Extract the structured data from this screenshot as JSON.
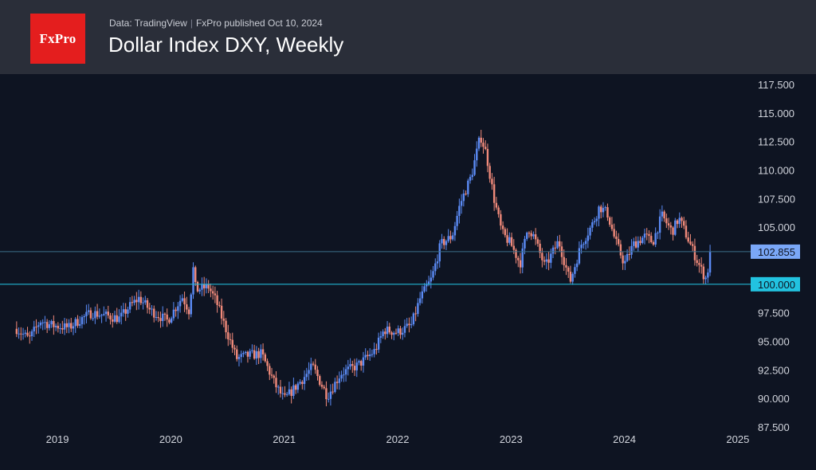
{
  "header": {
    "logo_text": "FxPro",
    "source_label": "Data: TradingView",
    "published_label": "FxPro published Oct 10, 2024",
    "title": "Dollar Index DXY, Weekly"
  },
  "colors": {
    "background": "#0e1422",
    "header_bg": "#2a2e39",
    "logo_bg": "#e41e1e",
    "up_candle": "#5b8bf5",
    "down_candle": "#f08a7a",
    "level_line": "#22b5d3",
    "price_line": "#3b6e8a",
    "price_badge": "#7aa7f7",
    "level_badge": "#22c3e0"
  },
  "chart_data": {
    "type": "candlestick",
    "title": "Dollar Index DXY, Weekly",
    "ylim": [
      87.5,
      117.5
    ],
    "xlim": [
      2018.62,
      2025.05
    ],
    "y_ticks": [
      "117.500",
      "115.000",
      "112.500",
      "110.000",
      "107.500",
      "105.000",
      "102.855",
      "100.000",
      "97.500",
      "95.000",
      "92.500",
      "90.000",
      "87.500"
    ],
    "y_tick_values": [
      117.5,
      115,
      112.5,
      110,
      107.5,
      105,
      102.855,
      100,
      97.5,
      95,
      92.5,
      90,
      87.5
    ],
    "x_ticks": [
      "2019",
      "2020",
      "2021",
      "2022",
      "2023",
      "2024",
      "2025"
    ],
    "x_tick_values": [
      2019,
      2020,
      2021,
      2022,
      2023,
      2024,
      2025
    ],
    "last_price": 102.855,
    "last_price_label": "102.855",
    "horizontal_level": 100.0,
    "horizontal_level_label": "100.000",
    "series_anchors": [
      [
        2018.64,
        96.1
      ],
      [
        2018.75,
        95.2
      ],
      [
        2018.85,
        96.8
      ],
      [
        2018.95,
        96.4
      ],
      [
        2019.1,
        96.2
      ],
      [
        2019.2,
        96.9
      ],
      [
        2019.3,
        97.5
      ],
      [
        2019.45,
        97.2
      ],
      [
        2019.55,
        97.0
      ],
      [
        2019.63,
        98.0
      ],
      [
        2019.72,
        98.8
      ],
      [
        2019.82,
        97.7
      ],
      [
        2019.97,
        96.8
      ],
      [
        2020.1,
        98.9
      ],
      [
        2020.17,
        97.5
      ],
      [
        2020.19,
        102.0
      ],
      [
        2020.22,
        99.5
      ],
      [
        2020.33,
        99.8
      ],
      [
        2020.4,
        98.5
      ],
      [
        2020.47,
        96.5
      ],
      [
        2020.58,
        93.5
      ],
      [
        2020.7,
        93.8
      ],
      [
        2020.8,
        93.9
      ],
      [
        2020.92,
        91.2
      ],
      [
        2021.0,
        89.9
      ],
      [
        2021.17,
        91.8
      ],
      [
        2021.25,
        92.8
      ],
      [
        2021.38,
        90.2
      ],
      [
        2021.5,
        92.2
      ],
      [
        2021.65,
        92.9
      ],
      [
        2021.8,
        94.2
      ],
      [
        2021.88,
        96.0
      ],
      [
        2022.0,
        95.8
      ],
      [
        2022.12,
        96.4
      ],
      [
        2022.2,
        98.8
      ],
      [
        2022.3,
        100.5
      ],
      [
        2022.38,
        103.5
      ],
      [
        2022.48,
        104.2
      ],
      [
        2022.55,
        107.0
      ],
      [
        2022.65,
        109.5
      ],
      [
        2022.73,
        113.0
      ],
      [
        2022.78,
        111.5
      ],
      [
        2022.85,
        107.5
      ],
      [
        2022.92,
        104.5
      ],
      [
        2023.0,
        103.5
      ],
      [
        2023.08,
        101.8
      ],
      [
        2023.15,
        105.0
      ],
      [
        2023.2,
        104.2
      ],
      [
        2023.3,
        101.5
      ],
      [
        2023.42,
        103.8
      ],
      [
        2023.52,
        100.2
      ],
      [
        2023.62,
        103.5
      ],
      [
        2023.72,
        105.3
      ],
      [
        2023.78,
        106.8
      ],
      [
        2023.85,
        106.2
      ],
      [
        2023.92,
        103.8
      ],
      [
        2024.0,
        101.8
      ],
      [
        2024.08,
        103.5
      ],
      [
        2024.18,
        104.2
      ],
      [
        2024.25,
        103.7
      ],
      [
        2024.33,
        106.0
      ],
      [
        2024.42,
        104.6
      ],
      [
        2024.48,
        105.8
      ],
      [
        2024.56,
        104.0
      ],
      [
        2024.63,
        102.3
      ],
      [
        2024.7,
        100.8
      ],
      [
        2024.72,
        100.5
      ],
      [
        2024.77,
        102.855
      ]
    ]
  }
}
